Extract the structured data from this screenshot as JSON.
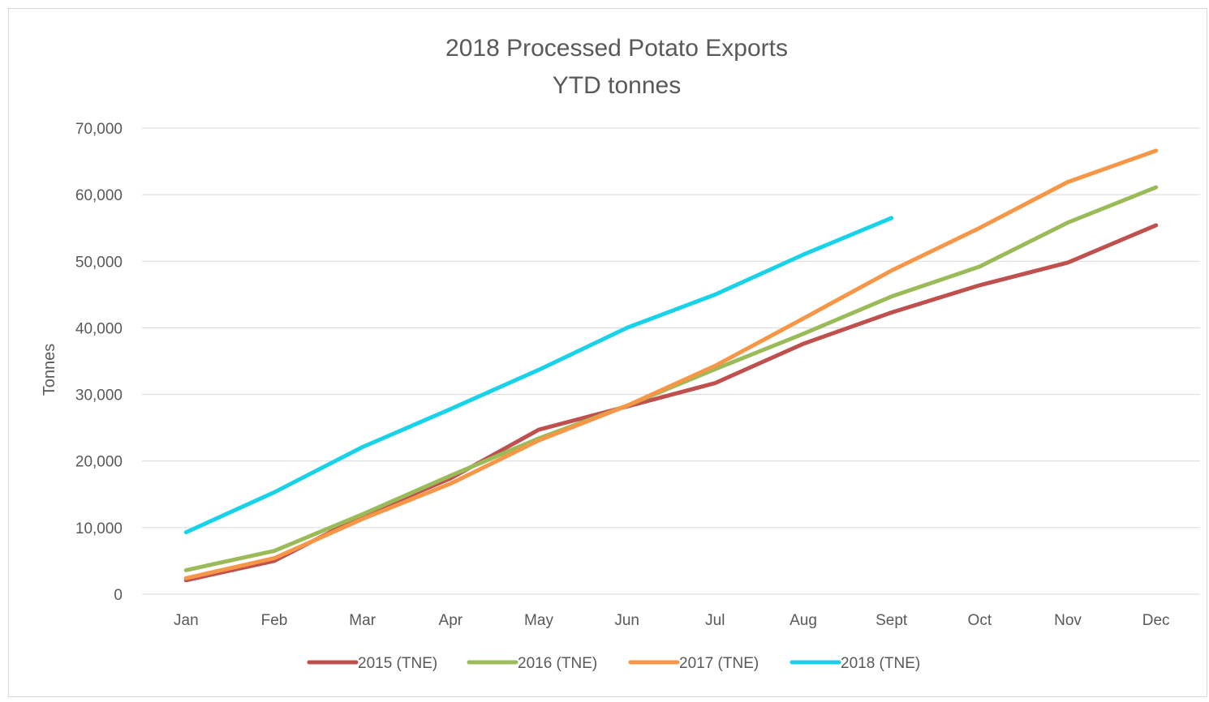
{
  "chart_data": {
    "type": "line",
    "title": "2018 Processed Potato Exports",
    "subtitle": "YTD tonnes",
    "xlabel": "",
    "ylabel": "Tonnes",
    "ylim": [
      0,
      70000
    ],
    "yticks": [
      0,
      10000,
      20000,
      30000,
      40000,
      50000,
      60000,
      70000
    ],
    "ytick_labels": [
      "0",
      "10,000",
      "20,000",
      "30,000",
      "40,000",
      "50,000",
      "60,000",
      "70,000"
    ],
    "categories": [
      "Jan",
      "Feb",
      "Mar",
      "Apr",
      "May",
      "Jun",
      "Jul",
      "Aug",
      "Sept",
      "Oct",
      "Nov",
      "Dec"
    ],
    "grid": "horizontal",
    "legend_position": "bottom",
    "series": [
      {
        "name": "2015 (TNE)",
        "color": "#c0504d",
        "values": [
          2100,
          5000,
          11800,
          17400,
          24700,
          28200,
          31700,
          37600,
          42300,
          46400,
          49800,
          55400
        ]
      },
      {
        "name": "2016 (TNE)",
        "color": "#9bbb59",
        "values": [
          3600,
          6500,
          12000,
          17800,
          23400,
          28300,
          33800,
          39100,
          44700,
          49200,
          55800,
          61100
        ]
      },
      {
        "name": "2017 (TNE)",
        "color": "#f79646",
        "values": [
          2400,
          5400,
          11300,
          16600,
          23100,
          28300,
          34300,
          41400,
          48600,
          55000,
          61900,
          66600
        ]
      },
      {
        "name": "2018 (TNE)",
        "color": "#17d2e8",
        "values": [
          9300,
          15300,
          22100,
          27800,
          33700,
          40000,
          45000,
          51000,
          56500,
          null,
          null,
          null
        ]
      }
    ]
  }
}
